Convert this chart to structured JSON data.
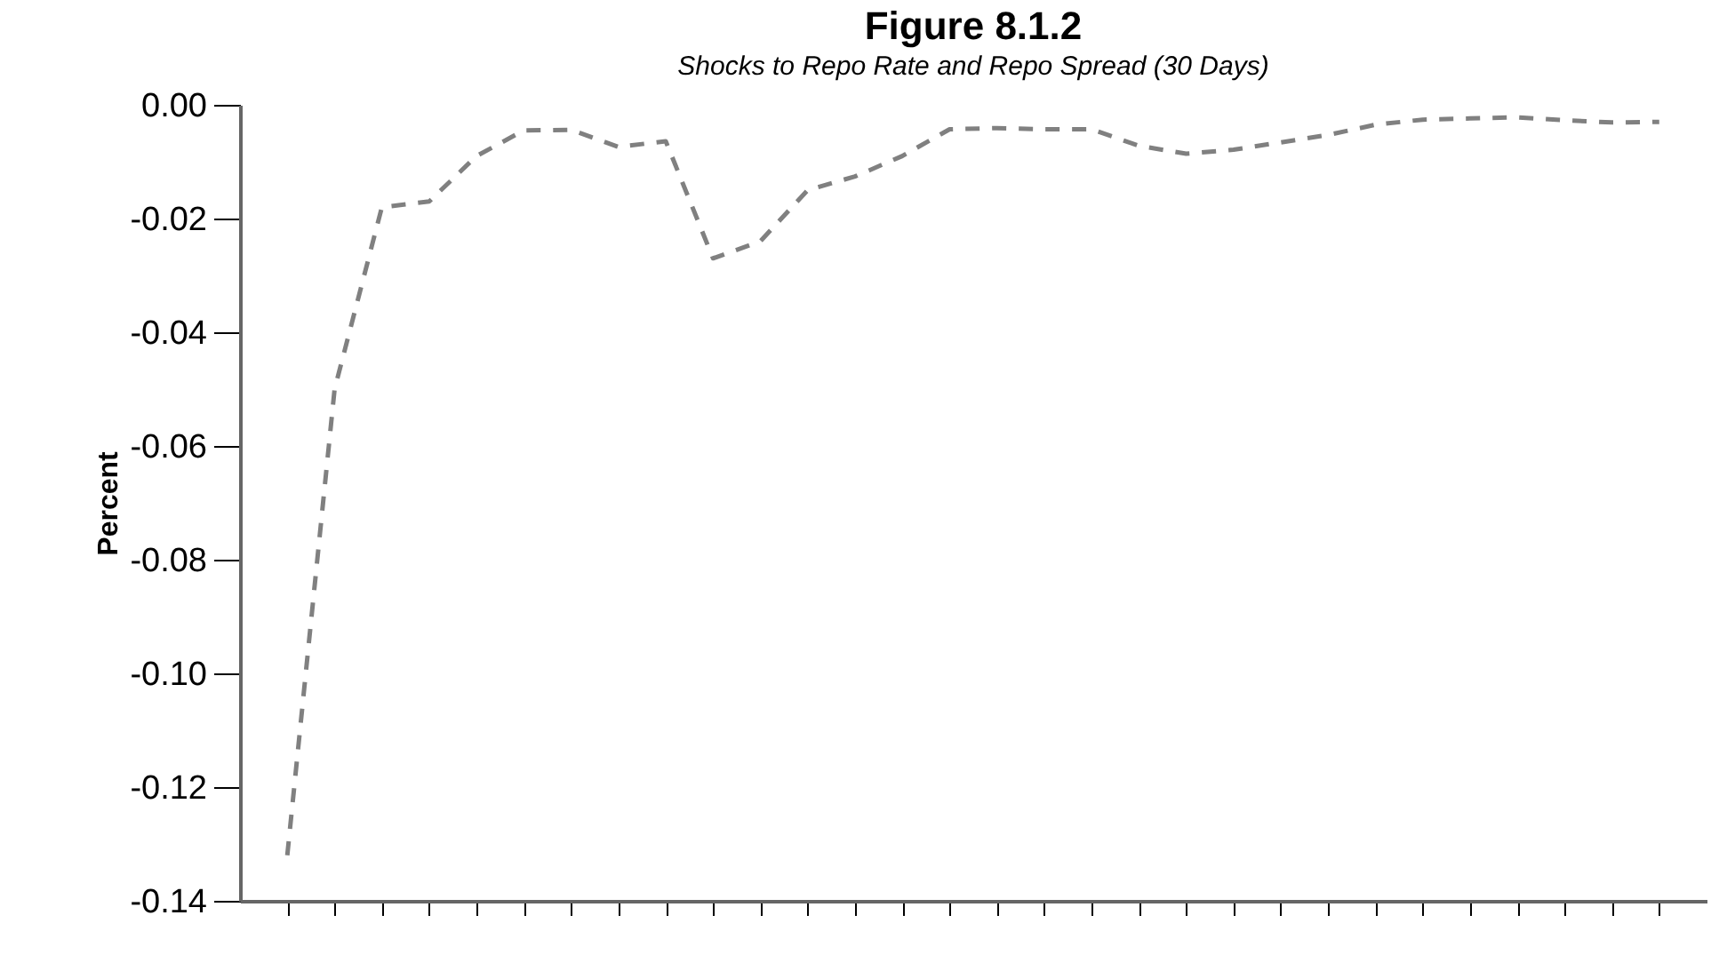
{
  "chart_data": {
    "type": "line",
    "title": "Figure 8.1.2",
    "subtitle": "Shocks to Repo Rate and Repo Spread (30 Days)",
    "ylabel": "Percent",
    "categories": [
      null,
      null,
      null,
      null,
      null,
      null,
      null,
      null,
      null,
      null,
      null,
      null,
      null,
      null,
      null,
      null,
      null,
      null,
      null,
      null,
      null,
      null,
      null,
      null,
      null,
      null,
      null,
      null,
      null,
      null
    ],
    "series": [
      {
        "color": "#808080",
        "values": [
          -0.132,
          -0.05,
          -0.018,
          -0.017,
          -0.009,
          -0.0045,
          -0.0044,
          -0.0074,
          -0.0064,
          -0.027,
          -0.024,
          -0.015,
          -0.0126,
          -0.009,
          -0.0043,
          -0.0041,
          -0.0043,
          -0.0043,
          -0.0072,
          -0.0086,
          -0.0079,
          -0.0066,
          -0.0053,
          -0.0035,
          -0.0026,
          -0.0024,
          -0.0022,
          -0.0027,
          -0.0031,
          -0.003
        ]
      }
    ],
    "ylim": [
      -0.14,
      0.0
    ],
    "yticks": [
      {
        "value": -0.14,
        "label": "-0.14"
      },
      {
        "value": -0.12,
        "label": "-0.12"
      },
      {
        "value": -0.1,
        "label": "-0.10"
      },
      {
        "value": -0.08,
        "label": "-0.08"
      },
      {
        "value": -0.06,
        "label": "-0.06"
      },
      {
        "value": -0.04,
        "label": "-0.04"
      },
      {
        "value": -0.02,
        "label": "-0.02"
      },
      {
        "value": 0.0,
        "label": "0.00"
      }
    ],
    "tick_labels": "y",
    "grid": false,
    "marker": "none",
    "line_style": "dashed"
  }
}
